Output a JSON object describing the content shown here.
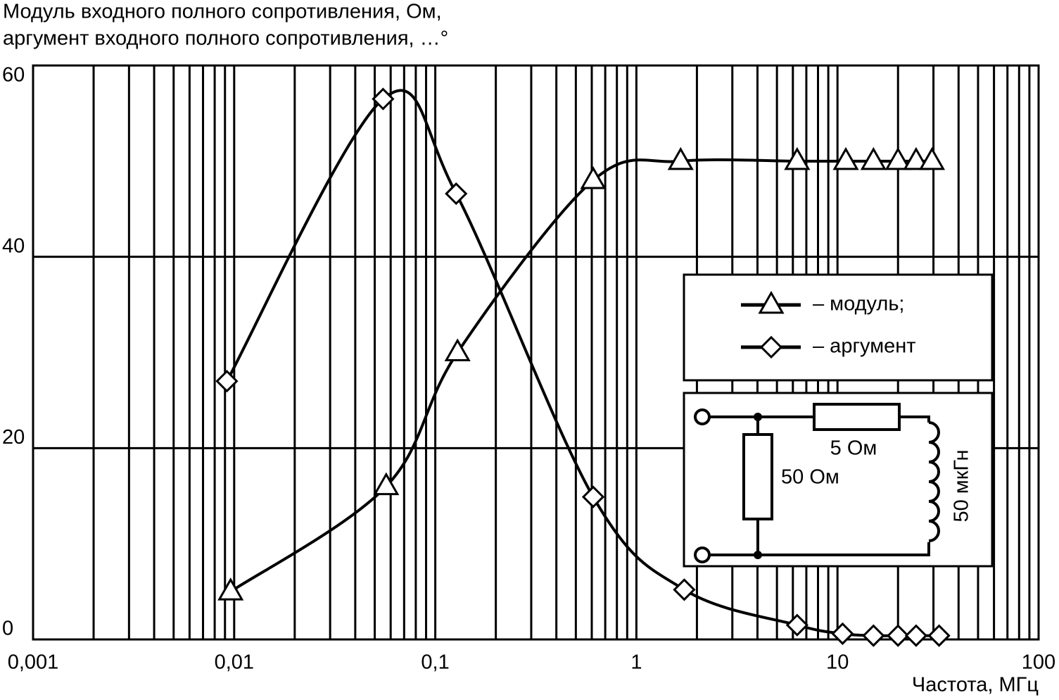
{
  "chart_data": {
    "type": "line",
    "title": [
      "Модуль входного полного сопротивления, Ом,",
      "аргумент входного полного сопротивления, …°"
    ],
    "x_label": "Частота, МГц",
    "x_log": true,
    "grid": true,
    "legend": "right",
    "xlim": [
      0.001,
      100
    ],
    "xticks": [
      {
        "value": 0.001,
        "label": "0,001"
      },
      {
        "value": 0.01,
        "label": "0,01"
      },
      {
        "value": 0.1,
        "label": "0,1"
      },
      1,
      10,
      100
    ],
    "ylim": [
      0,
      60
    ],
    "yticks": [
      0,
      20,
      40,
      60
    ],
    "series": [
      {
        "name": "– модуль;",
        "marker": "triangle",
        "color": "#000000",
        "x": [
          0.0096,
          0.057,
          0.129,
          0.61,
          1.66,
          6.3,
          11,
          15.1,
          20,
          24.6,
          29.5
        ],
        "values": [
          5,
          16,
          30,
          48,
          50,
          50,
          50,
          50,
          50,
          50,
          50
        ]
      },
      {
        "name": "– аргумент",
        "marker": "diamond",
        "color": "#000000",
        "x": [
          0.0092,
          0.055,
          0.127,
          0.61,
          1.73,
          6.3,
          10.6,
          15.1,
          20,
          24.6,
          32
        ],
        "values": [
          27,
          56.5,
          46.6,
          14.9,
          5.2,
          1.5,
          0.6,
          0.4,
          0.4,
          0.4,
          0.4
        ]
      }
    ],
    "annotations": [
      "5 Ом",
      "50 Ом",
      "50 мкГн"
    ]
  }
}
